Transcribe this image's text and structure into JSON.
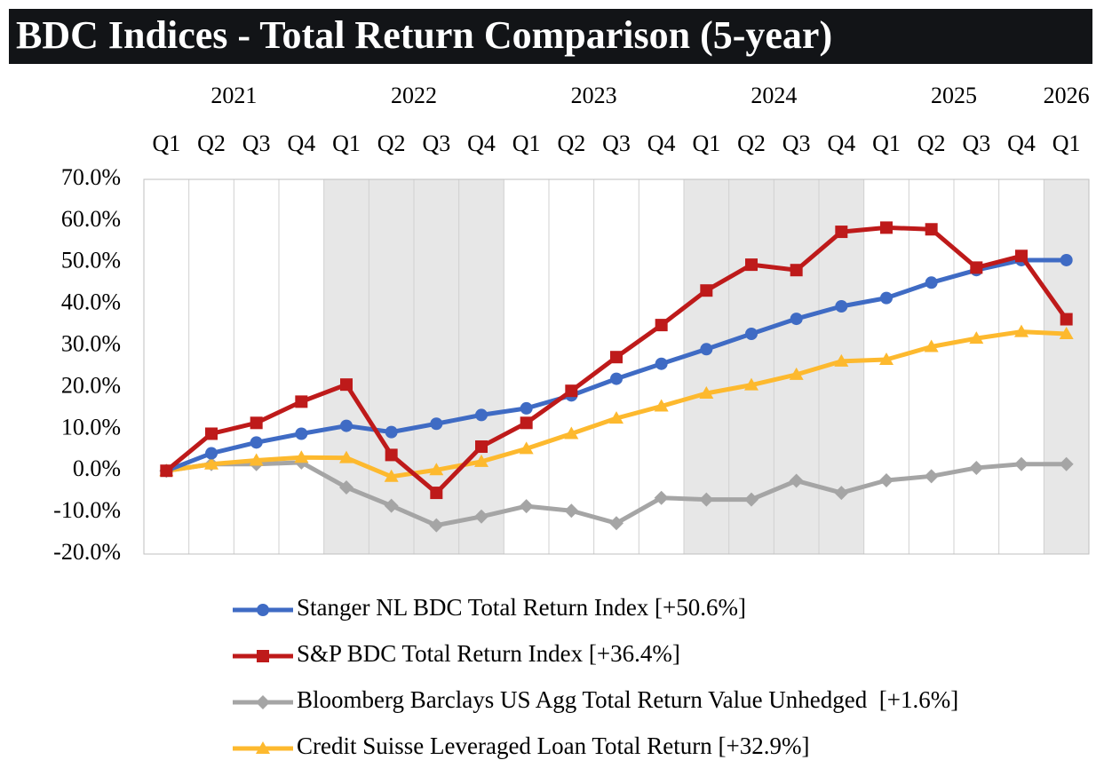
{
  "chart_data": {
    "type": "line",
    "title": "BDC Indices - Total Return Comparison (5-year)",
    "years": [
      "2021",
      "2022",
      "2023",
      "2024",
      "2025",
      "2026"
    ],
    "categories": [
      "Q1",
      "Q2",
      "Q3",
      "Q4",
      "Q1",
      "Q2",
      "Q3",
      "Q4",
      "Q1",
      "Q2",
      "Q3",
      "Q4",
      "Q1",
      "Q2",
      "Q3",
      "Q4",
      "Q1",
      "Q2",
      "Q3",
      "Q4",
      "Q1"
    ],
    "ylim": [
      -20,
      70
    ],
    "yticks": [
      {
        "value": -20,
        "label": "-20.0%"
      },
      {
        "value": -10,
        "label": "-10.0%"
      },
      {
        "value": 0,
        "label": "0.0%"
      },
      {
        "value": 10,
        "label": "10.0%"
      },
      {
        "value": 20,
        "label": "20.0%"
      },
      {
        "value": 30,
        "label": "30.0%"
      },
      {
        "value": 40,
        "label": "40.0%"
      },
      {
        "value": 50,
        "label": "50.0%"
      },
      {
        "value": 60,
        "label": "60.0%"
      },
      {
        "value": 70,
        "label": "70.0%"
      }
    ],
    "grid": false,
    "legend": "bottom",
    "series": [
      {
        "name": "Stanger NL BDC Total Return Index [+50.6%]",
        "color": "#3f6bc4",
        "marker": "circle",
        "values": [
          0,
          4.2,
          6.8,
          8.9,
          10.8,
          9.3,
          11.3,
          13.4,
          15.0,
          18.1,
          22.1,
          25.7,
          29.2,
          32.9,
          36.5,
          39.5,
          41.5,
          45.2,
          48.2,
          50.6,
          50.6
        ]
      },
      {
        "name": "S&P BDC Total Return Index [+36.4%]",
        "color": "#be1a1a",
        "marker": "square",
        "values": [
          0,
          8.9,
          11.5,
          16.6,
          20.7,
          3.8,
          -5.3,
          5.8,
          11.5,
          19.2,
          27.3,
          35.0,
          43.3,
          49.5,
          48.2,
          57.4,
          58.4,
          58.0,
          48.8,
          51.6,
          36.4
        ]
      },
      {
        "name": "Bloomberg Barclays US Agg Total Return Value Unhedged  [+1.6%]",
        "color": "#a5a5a5",
        "marker": "diamond",
        "values": [
          0,
          1.6,
          1.6,
          2.0,
          -4.0,
          -8.4,
          -13.1,
          -11.0,
          -8.5,
          -9.6,
          -12.6,
          -6.5,
          -6.9,
          -6.9,
          -2.4,
          -5.3,
          -2.3,
          -1.3,
          0.7,
          1.6,
          1.6
        ]
      },
      {
        "name": "Credit Suisse Leveraged Loan Total Return [+32.9%]",
        "color": "#fdb92e",
        "marker": "triangle",
        "values": [
          0,
          1.6,
          2.5,
          3.2,
          3.1,
          -1.4,
          0.2,
          2.2,
          5.3,
          8.9,
          12.6,
          15.5,
          18.6,
          20.6,
          23.1,
          26.3,
          26.7,
          29.8,
          31.8,
          33.4,
          32.9
        ]
      }
    ]
  }
}
